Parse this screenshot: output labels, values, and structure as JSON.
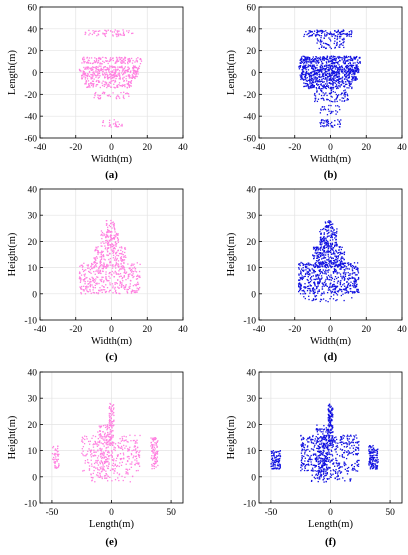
{
  "colors": {
    "pink": "#ff80e0",
    "blue": "#1010e0",
    "grid": "#e3e3e3",
    "axis": "#000000"
  },
  "chart_data": [
    {
      "type": "scatter",
      "panel": "a",
      "caption": "(a)",
      "color": "pink",
      "xlabel": "Width(m)",
      "ylabel": "Length(m)",
      "xlim": [
        -40,
        40
      ],
      "ylim": [
        -60,
        60
      ],
      "xticks": [
        -40,
        -20,
        0,
        20,
        40
      ],
      "yticks": [
        -60,
        -40,
        -20,
        0,
        20,
        40,
        60
      ],
      "xtick_labels": [
        "-40",
        "-20",
        "0",
        "20",
        "40"
      ],
      "ytick_labels": [
        "-60",
        "-40",
        "-20",
        "0",
        "20",
        "40",
        "60"
      ],
      "grid": true,
      "clusters": [
        {
          "x": [
            -15,
            12
          ],
          "y": [
            33,
            39
          ],
          "n": 60
        },
        {
          "x": [
            -17,
            17
          ],
          "y": [
            8,
            14
          ],
          "n": 130
        },
        {
          "x": [
            -18,
            16
          ],
          "y": [
            0,
            6
          ],
          "n": 170
        },
        {
          "x": [
            -17,
            15
          ],
          "y": [
            -6,
            0
          ],
          "n": 150
        },
        {
          "x": [
            -15,
            12
          ],
          "y": [
            -14,
            -7
          ],
          "n": 110
        },
        {
          "x": [
            -10,
            10
          ],
          "y": [
            -24,
            -18
          ],
          "n": 40
        },
        {
          "x": [
            -6,
            6
          ],
          "y": [
            -50,
            -43
          ],
          "n": 28
        }
      ]
    },
    {
      "type": "scatter",
      "panel": "b",
      "caption": "(b)",
      "color": "blue",
      "xlabel": "Width(m)",
      "ylabel": "Length(m)",
      "xlim": [
        -40,
        40
      ],
      "ylim": [
        -60,
        60
      ],
      "xticks": [
        -40,
        -20,
        0,
        20,
        40
      ],
      "yticks": [
        -60,
        -40,
        -20,
        0,
        20,
        40,
        60
      ],
      "xtick_labels": [
        "-40",
        "-20",
        "0",
        "20",
        "40"
      ],
      "ytick_labels": [
        "-60",
        "-40",
        "-20",
        "0",
        "20",
        "40",
        "60"
      ],
      "grid": true,
      "clusters": [
        {
          "x": [
            -15,
            12
          ],
          "y": [
            33,
            39
          ],
          "n": 110
        },
        {
          "x": [
            -8,
            8
          ],
          "y": [
            22,
            32
          ],
          "n": 60
        },
        {
          "x": [
            -17,
            17
          ],
          "y": [
            8,
            15
          ],
          "n": 220
        },
        {
          "x": [
            -18,
            16
          ],
          "y": [
            0,
            7
          ],
          "n": 260
        },
        {
          "x": [
            -17,
            15
          ],
          "y": [
            -7,
            0
          ],
          "n": 230
        },
        {
          "x": [
            -15,
            12
          ],
          "y": [
            -15,
            -7
          ],
          "n": 170
        },
        {
          "x": [
            -10,
            10
          ],
          "y": [
            -27,
            -16
          ],
          "n": 80
        },
        {
          "x": [
            -6,
            6
          ],
          "y": [
            -40,
            -30
          ],
          "n": 25
        },
        {
          "x": [
            -6,
            6
          ],
          "y": [
            -50,
            -43
          ],
          "n": 45
        }
      ]
    },
    {
      "type": "scatter",
      "panel": "c",
      "caption": "(c)",
      "color": "pink",
      "xlabel": "Width(m)",
      "ylabel": "Height(m)",
      "xlim": [
        -40,
        40
      ],
      "ylim": [
        -10,
        40
      ],
      "xticks": [
        -40,
        -20,
        0,
        20,
        40
      ],
      "yticks": [
        -10,
        0,
        10,
        20,
        30,
        40
      ],
      "xtick_labels": [
        "-40",
        "-20",
        "0",
        "20",
        "40"
      ],
      "ytick_labels": [
        "-10",
        "0",
        "10",
        "20",
        "30",
        "40"
      ],
      "grid": true,
      "clusters": [
        {
          "x": [
            -18,
            16
          ],
          "y": [
            0,
            12
          ],
          "n": 360
        },
        {
          "x": [
            -10,
            8
          ],
          "y": [
            10,
            18
          ],
          "n": 160
        },
        {
          "x": [
            -6,
            4
          ],
          "y": [
            18,
            24
          ],
          "n": 90
        },
        {
          "x": [
            -3,
            2
          ],
          "y": [
            24,
            28
          ],
          "n": 25
        }
      ]
    },
    {
      "type": "scatter",
      "panel": "d",
      "caption": "(d)",
      "color": "blue",
      "xlabel": "Width(m)",
      "ylabel": "Height(m)",
      "xlim": [
        -40,
        40
      ],
      "ylim": [
        -10,
        40
      ],
      "xticks": [
        -40,
        -20,
        0,
        20,
        40
      ],
      "yticks": [
        -10,
        0,
        10,
        20,
        30,
        40
      ],
      "xtick_labels": [
        "-40",
        "-20",
        "0",
        "20",
        "40"
      ],
      "ytick_labels": [
        "-10",
        "0",
        "10",
        "20",
        "30",
        "40"
      ],
      "grid": true,
      "clusters": [
        {
          "x": [
            -18,
            16
          ],
          "y": [
            0,
            12
          ],
          "n": 520
        },
        {
          "x": [
            -10,
            8
          ],
          "y": [
            10,
            18
          ],
          "n": 230
        },
        {
          "x": [
            -6,
            4
          ],
          "y": [
            18,
            25
          ],
          "n": 120
        },
        {
          "x": [
            -3,
            2
          ],
          "y": [
            25,
            28
          ],
          "n": 30
        },
        {
          "x": [
            -16,
            12
          ],
          "y": [
            -3,
            0
          ],
          "n": 30
        }
      ]
    },
    {
      "type": "scatter",
      "panel": "e",
      "caption": "(e)",
      "color": "pink",
      "xlabel": "Length(m)",
      "ylabel": "Height(m)",
      "xlim": [
        -60,
        60
      ],
      "ylim": [
        -10,
        40
      ],
      "xticks": [
        -50,
        0,
        50
      ],
      "yticks": [
        -10,
        0,
        10,
        20,
        30,
        40
      ],
      "xtick_labels": [
        "-50",
        "0",
        "50"
      ],
      "ytick_labels": [
        "-10",
        "0",
        "10",
        "20",
        "30",
        "40"
      ],
      "grid": true,
      "clusters": [
        {
          "x": [
            -50,
            -44
          ],
          "y": [
            3,
            12
          ],
          "n": 45
        },
        {
          "x": [
            -25,
            24
          ],
          "y": [
            2,
            16
          ],
          "n": 280
        },
        {
          "x": [
            -12,
            -2
          ],
          "y": [
            -1,
            20
          ],
          "n": 120
        },
        {
          "x": [
            -2,
            2
          ],
          "y": [
            12,
            28
          ],
          "n": 90
        },
        {
          "x": [
            33,
            39
          ],
          "y": [
            3,
            15
          ],
          "n": 90
        },
        {
          "x": [
            -18,
            18
          ],
          "y": [
            -2,
            2
          ],
          "n": 40
        }
      ]
    },
    {
      "type": "scatter",
      "panel": "f",
      "caption": "(f)",
      "color": "blue",
      "xlabel": "Length(m)",
      "ylabel": "Height(m)",
      "xlim": [
        -60,
        60
      ],
      "ylim": [
        -10,
        40
      ],
      "xticks": [
        -50,
        0,
        50
      ],
      "yticks": [
        -10,
        0,
        10,
        20,
        30,
        40
      ],
      "xtick_labels": [
        "-50",
        "0",
        "50"
      ],
      "ytick_labels": [
        "-10",
        "0",
        "10",
        "20",
        "30",
        "40"
      ],
      "grid": true,
      "clusters": [
        {
          "x": [
            -50,
            -42
          ],
          "y": [
            3,
            10
          ],
          "n": 90
        },
        {
          "x": [
            -25,
            24
          ],
          "y": [
            2,
            16
          ],
          "n": 420
        },
        {
          "x": [
            -12,
            -2
          ],
          "y": [
            -1,
            20
          ],
          "n": 170
        },
        {
          "x": [
            -2,
            2
          ],
          "y": [
            12,
            28
          ],
          "n": 120
        },
        {
          "x": [
            32,
            40
          ],
          "y": [
            3,
            12
          ],
          "n": 120
        },
        {
          "x": [
            -18,
            18
          ],
          "y": [
            -2,
            2
          ],
          "n": 50
        }
      ]
    }
  ]
}
